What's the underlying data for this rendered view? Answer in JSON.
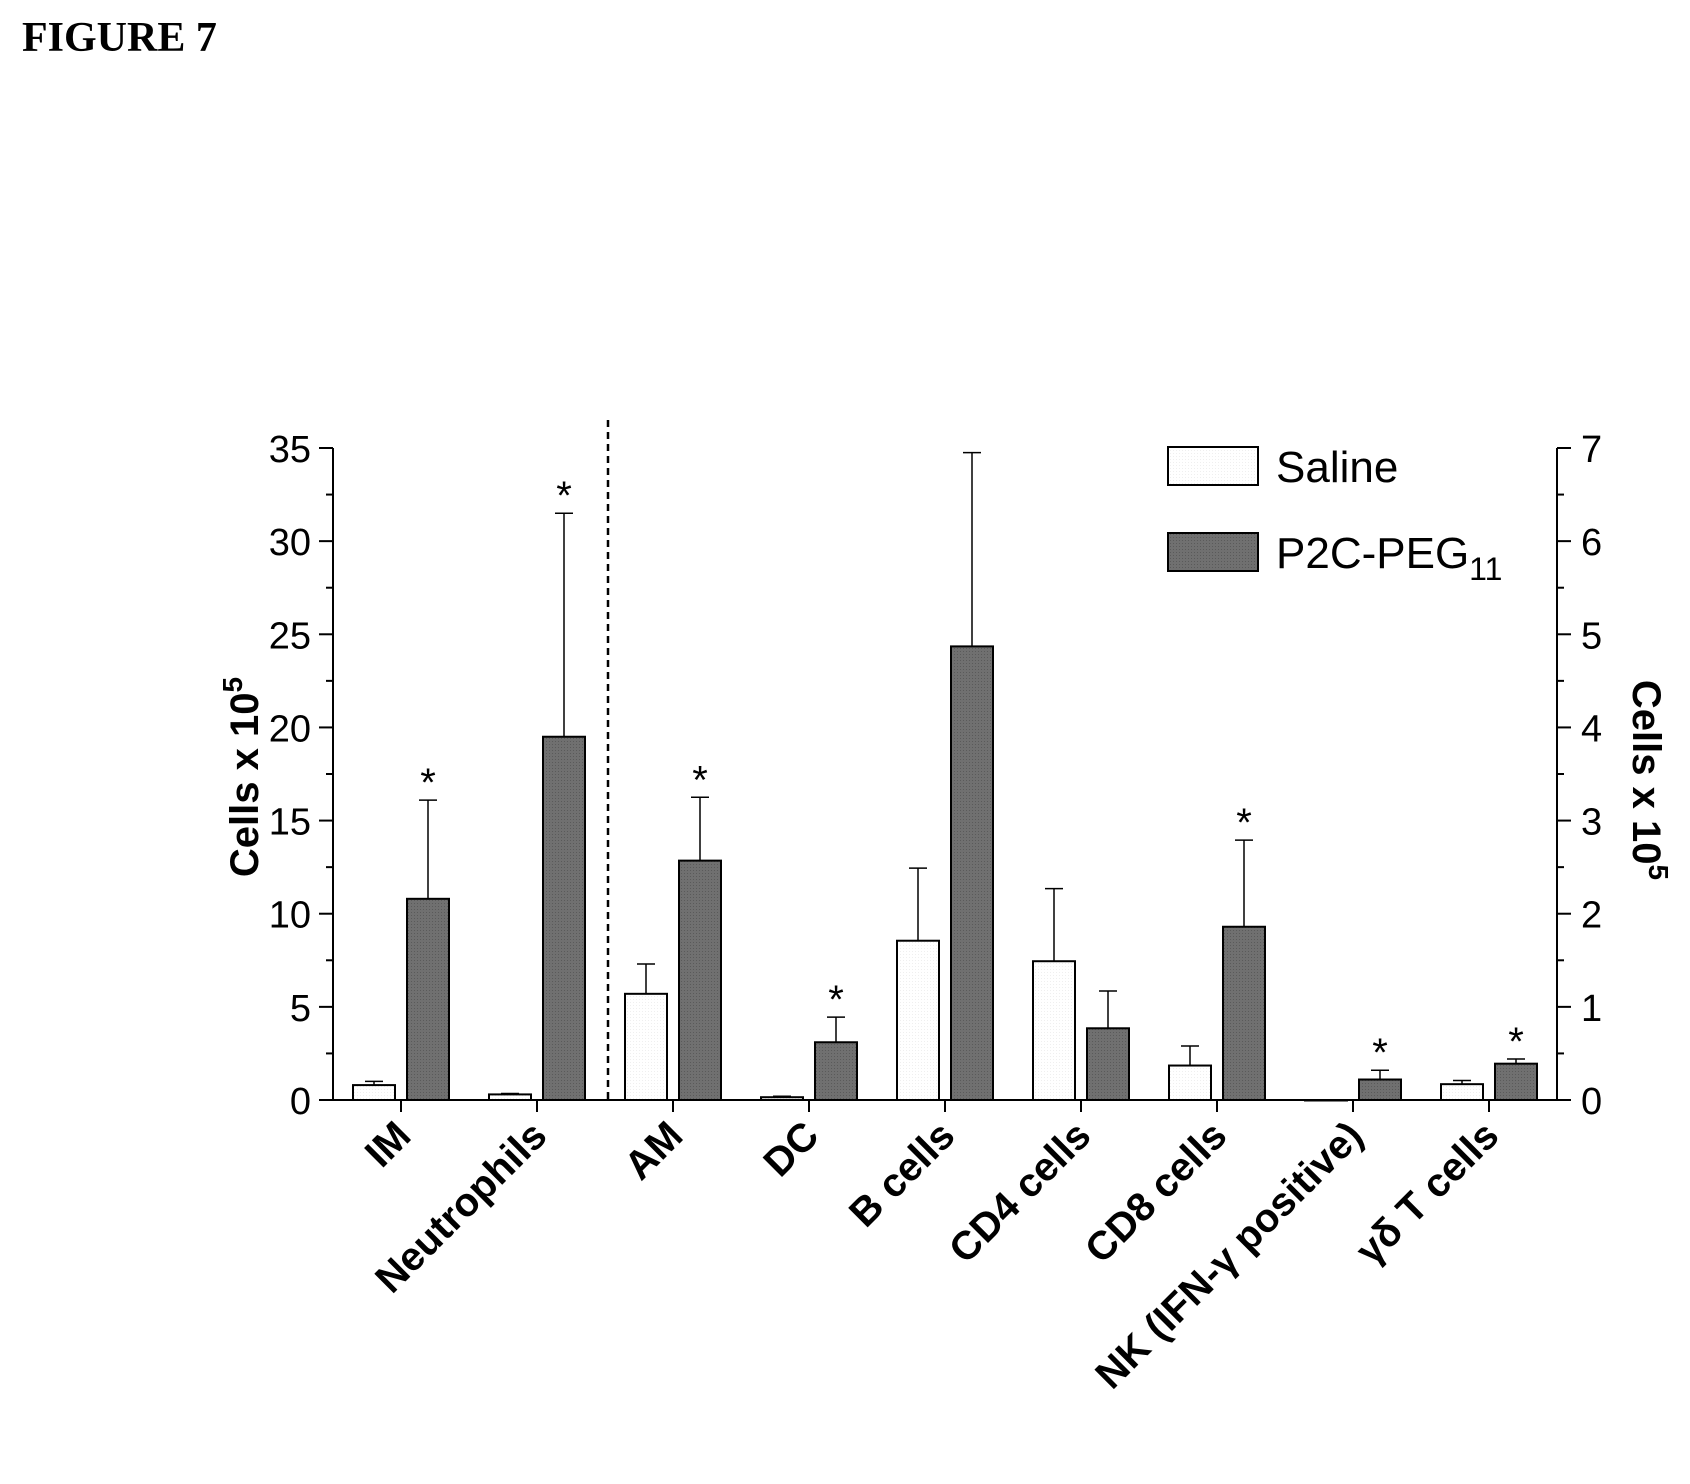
{
  "figure_label": "FIGURE 7",
  "chart_data": {
    "type": "bar",
    "title": "",
    "left_axis": {
      "label": "Cells x 10",
      "exponent": "5",
      "ylim": [
        0,
        35
      ],
      "ticks": [
        "0",
        "5",
        "10",
        "15",
        "20",
        "25",
        "30",
        "35"
      ]
    },
    "right_axis": {
      "label": "Cells x 10",
      "exponent": "5",
      "ylim": [
        0,
        7
      ],
      "ticks": [
        "0",
        "1",
        "2",
        "3",
        "4",
        "5",
        "6",
        "7"
      ]
    },
    "categories": [
      "IM",
      "Neutrophils",
      "AM",
      "DC",
      "B cells",
      "CD4 cells",
      "CD8 cells",
      "NK (IFN-γ positive)",
      "γδ T cells"
    ],
    "left_axis_categories": [
      "IM",
      "Neutrophils"
    ],
    "right_axis_categories": [
      "AM",
      "DC",
      "B cells",
      "CD4 cells",
      "CD8 cells",
      "NK (IFN-γ positive)",
      "γδ T cells"
    ],
    "legend": {
      "position": "top-right",
      "entries": [
        {
          "name": "Saline",
          "fill": "#ffffff"
        },
        {
          "name": "P2C-PEG",
          "subscript": "11",
          "fill": "#6e6e6e"
        }
      ]
    },
    "series": [
      {
        "name": "Saline",
        "fill": "#ffffff",
        "values": [
          0.8,
          0.3,
          1.14,
          0.03,
          1.71,
          1.49,
          0.37,
          0,
          0.17
        ],
        "errors": [
          0.2,
          0.05,
          0.32,
          0.01,
          0.78,
          0.78,
          0.21,
          0,
          0.04
        ],
        "significant": [
          false,
          false,
          false,
          false,
          false,
          false,
          false,
          false,
          false
        ]
      },
      {
        "name": "P2C-PEG11",
        "fill": "#6e6e6e",
        "values": [
          10.8,
          19.5,
          2.57,
          0.62,
          4.87,
          0.77,
          1.86,
          0.22,
          0.39
        ],
        "errors": [
          5.3,
          12.0,
          0.68,
          0.27,
          2.08,
          0.4,
          0.93,
          0.1,
          0.05
        ],
        "significant": [
          true,
          true,
          true,
          true,
          false,
          false,
          true,
          true,
          true
        ]
      }
    ],
    "significance_marker": "*"
  }
}
